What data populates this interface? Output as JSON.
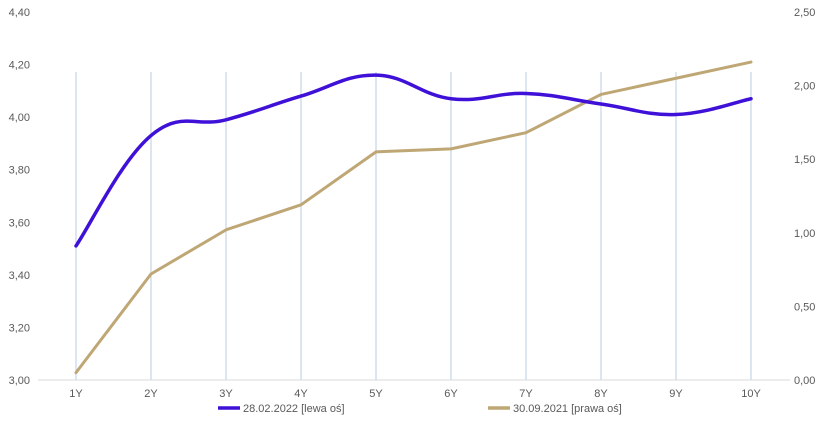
{
  "chart_data": {
    "type": "line",
    "categories": [
      "1Y",
      "2Y",
      "3Y",
      "4Y",
      "5Y",
      "6Y",
      "7Y",
      "8Y",
      "9Y",
      "10Y"
    ],
    "y_left": {
      "min": 3.0,
      "max": 4.4,
      "ticks": [
        "3,00",
        "3,20",
        "3,40",
        "3,60",
        "3,80",
        "4,00",
        "4,20",
        "4,40"
      ]
    },
    "y_right": {
      "min": 0.0,
      "max": 2.5,
      "ticks": [
        "0,00",
        "0,50",
        "1,00",
        "1,50",
        "2,00",
        "2,50"
      ]
    },
    "grid": "vertical",
    "series": [
      {
        "name": "28.02.2022 [lewa oś]",
        "axis": "left",
        "color": "#3E10D8",
        "smooth": true,
        "values": [
          3.51,
          3.93,
          3.99,
          4.08,
          4.16,
          4.07,
          4.09,
          4.05,
          4.01,
          4.07
        ]
      },
      {
        "name": "30.09.2021 [prawa oś]",
        "axis": "right",
        "color": "#BFA775",
        "smooth": false,
        "values": [
          0.05,
          0.72,
          1.02,
          1.19,
          1.55,
          1.57,
          1.68,
          1.94,
          2.05,
          2.16
        ]
      }
    ],
    "legend": "bottom"
  }
}
